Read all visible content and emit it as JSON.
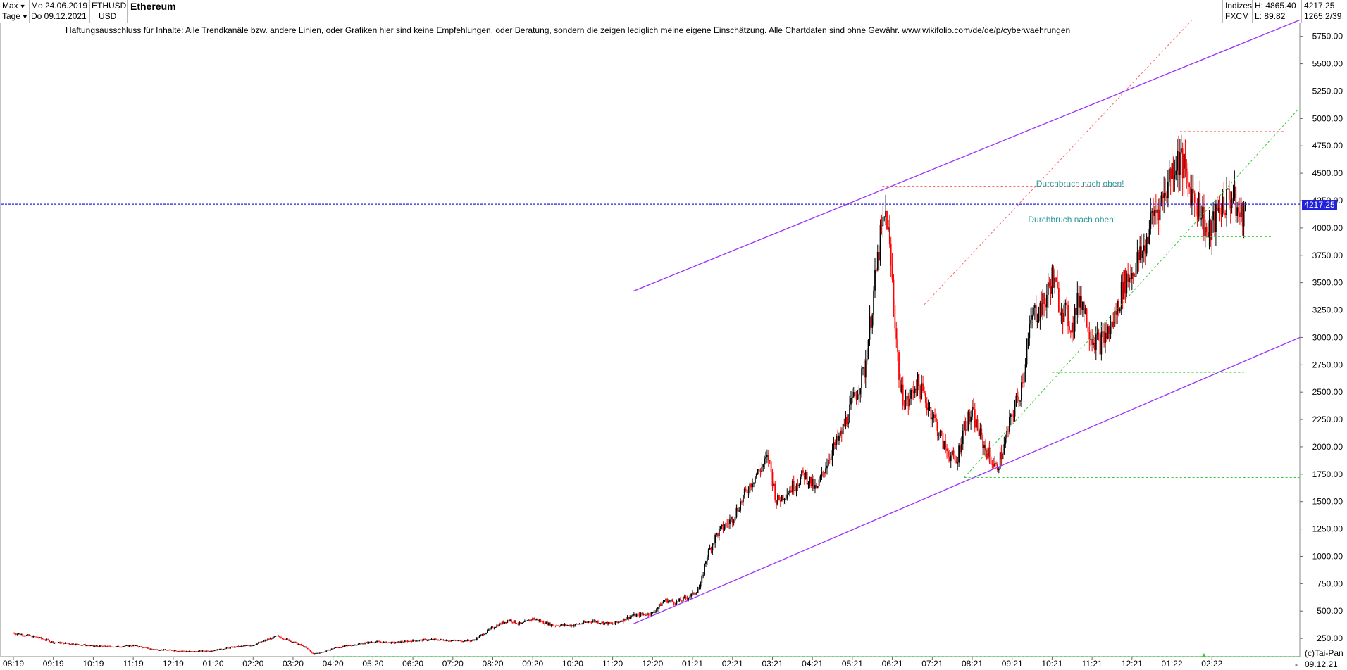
{
  "toolbar": {
    "range_label": "Max",
    "interval_label": "Tage",
    "date_from": "Mo 24.06.2019",
    "date_to": "Do 09.12.2021",
    "symbol": "ETHUSD",
    "currency": "USD",
    "name": "Ethereum",
    "market": "Indizes",
    "source": "FXCM",
    "high": "H: 4865.40",
    "low": "L: 89.82",
    "last": "4217.25",
    "last_sub": "1265.2/39"
  },
  "disclaimer": "Haftungsausschluss für Inhalte: Alle Trendkanäle bzw. andere Linien, oder Grafiken hier sind keine Empfehlungen, oder Beratung, sondern die zeigen lediglich meine eigene Einschätzung. Alle Chartdaten sind ohne Gewähr.  www.wikifolio.com/de/de/p/cyberwaehrungen",
  "current_price_label": "4217.25",
  "copyright": "(c)Tai-Pan",
  "footer_date": "09.12.21",
  "x_dash": "-",
  "chart_data": {
    "type": "candlestick",
    "title": "Ethereum",
    "ylim": [
      0,
      6000
    ],
    "y_ticks": [
      "250.00",
      "500.00",
      "750.00",
      "1000.00",
      "1250.00",
      "1500.00",
      "1750.00",
      "2000.00",
      "2250.00",
      "2500.00",
      "2750.00",
      "3000.00",
      "3250.00",
      "3500.00",
      "3750.00",
      "4000.00",
      "4250.00",
      "4500.00",
      "4750.00",
      "5000.00",
      "5250.00",
      "5500.00",
      "5750.00"
    ],
    "x_ticks": [
      "08:19",
      "09:19",
      "10:19",
      "11:19",
      "12:19",
      "01:20",
      "02:20",
      "03:20",
      "04:20",
      "05:20",
      "06:20",
      "07:20",
      "08:20",
      "09:20",
      "10:20",
      "11:20",
      "12:20",
      "01:21",
      "02:21",
      "03:21",
      "04:21",
      "05:21",
      "06:21",
      "07:21",
      "08:21",
      "09:21",
      "10:21",
      "11:21",
      "12:21",
      "01:22",
      "02:22"
    ],
    "x_range_months": [
      -0.3,
      32.2
    ],
    "bullish_color": "#000000",
    "bearish_color": "#ff0000",
    "price_anchors": [
      [
        0.0,
        300
      ],
      [
        0.6,
        260
      ],
      [
        1.0,
        215
      ],
      [
        1.5,
        200
      ],
      [
        2.0,
        180
      ],
      [
        2.6,
        175
      ],
      [
        3.0,
        185
      ],
      [
        3.5,
        150
      ],
      [
        4.0,
        140
      ],
      [
        4.5,
        130
      ],
      [
        5.0,
        140
      ],
      [
        5.5,
        170
      ],
      [
        6.0,
        190
      ],
      [
        6.6,
        270
      ],
      [
        7.0,
        220
      ],
      [
        7.3,
        170
      ],
      [
        7.5,
        110
      ],
      [
        7.8,
        130
      ],
      [
        8.0,
        160
      ],
      [
        8.5,
        190
      ],
      [
        9.0,
        220
      ],
      [
        9.5,
        210
      ],
      [
        10.0,
        230
      ],
      [
        10.5,
        240
      ],
      [
        11.0,
        230
      ],
      [
        11.5,
        230
      ],
      [
        11.8,
        300
      ],
      [
        12.0,
        350
      ],
      [
        12.4,
        420
      ],
      [
        12.7,
        380
      ],
      [
        13.0,
        430
      ],
      [
        13.5,
        370
      ],
      [
        14.0,
        370
      ],
      [
        14.5,
        410
      ],
      [
        15.0,
        380
      ],
      [
        15.5,
        460
      ],
      [
        16.0,
        480
      ],
      [
        16.3,
        600
      ],
      [
        16.6,
        580
      ],
      [
        17.0,
        650
      ],
      [
        17.2,
        730
      ],
      [
        17.35,
        1000
      ],
      [
        17.6,
        1200
      ],
      [
        18.0,
        1350
      ],
      [
        18.5,
        1700
      ],
      [
        18.9,
        1900
      ],
      [
        19.1,
        1500
      ],
      [
        19.4,
        1600
      ],
      [
        19.8,
        1750
      ],
      [
        20.1,
        1600
      ],
      [
        20.4,
        1900
      ],
      [
        20.7,
        2100
      ],
      [
        21.0,
        2400
      ],
      [
        21.3,
        2700
      ],
      [
        21.5,
        3300
      ],
      [
        21.7,
        3900
      ],
      [
        21.85,
        4150
      ],
      [
        22.0,
        3500
      ],
      [
        22.2,
        2500
      ],
      [
        22.4,
        2400
      ],
      [
        22.6,
        2600
      ],
      [
        23.0,
        2300
      ],
      [
        23.3,
        2000
      ],
      [
        23.6,
        1850
      ],
      [
        23.8,
        2200
      ],
      [
        24.0,
        2300
      ],
      [
        24.3,
        2000
      ],
      [
        24.6,
        1800
      ],
      [
        24.8,
        2000
      ],
      [
        25.0,
        2300
      ],
      [
        25.2,
        2500
      ],
      [
        25.5,
        3200
      ],
      [
        25.8,
        3300
      ],
      [
        26.0,
        3550
      ],
      [
        26.2,
        3300
      ],
      [
        26.5,
        3100
      ],
      [
        26.7,
        3400
      ],
      [
        27.0,
        3000
      ],
      [
        27.2,
        2950
      ],
      [
        27.5,
        3100
      ],
      [
        27.8,
        3500
      ],
      [
        28.0,
        3600
      ],
      [
        28.3,
        3800
      ],
      [
        28.5,
        4100
      ],
      [
        28.8,
        4300
      ],
      [
        29.0,
        4550
      ],
      [
        29.2,
        4650
      ],
      [
        29.4,
        4400
      ],
      [
        29.7,
        4200
      ],
      [
        29.9,
        3900
      ],
      [
        30.2,
        4200
      ],
      [
        30.5,
        4300
      ],
      [
        30.7,
        4100
      ],
      [
        30.85,
        4200
      ]
    ],
    "annotations": [
      {
        "text": "Durchbruch nach oben!",
        "x": 27.8,
        "y": 4380
      },
      {
        "text": "Durchbruch nach oben!",
        "x": 27.6,
        "y": 4050
      }
    ],
    "trend_lines": [
      {
        "color": "#9b30ff",
        "style": "solid",
        "from": [
          15.5,
          3420
        ],
        "to": [
          32.2,
          5900
        ]
      },
      {
        "color": "#9b30ff",
        "style": "solid",
        "from": [
          15.5,
          380
        ],
        "to": [
          32.2,
          3000
        ]
      },
      {
        "color": "#ff6666",
        "style": "dashed",
        "from": [
          22.8,
          3300
        ],
        "to": [
          29.5,
          5900
        ]
      },
      {
        "color": "#33cc33",
        "style": "dashed",
        "from": [
          23.8,
          1720
        ],
        "to": [
          32.2,
          5100
        ]
      },
      {
        "color": "#ff3333",
        "style": "dashed",
        "from": [
          21.75,
          4380
        ],
        "to": [
          27.8,
          4380
        ]
      },
      {
        "color": "#ff3333",
        "style": "dashed",
        "from": [
          29.2,
          4880
        ],
        "to": [
          31.8,
          4880
        ]
      },
      {
        "color": "#33cc33",
        "style": "dashed",
        "from": [
          29.2,
          3920
        ],
        "to": [
          31.5,
          3920
        ]
      },
      {
        "color": "#33cc33",
        "style": "dashed",
        "from": [
          26.0,
          2680
        ],
        "to": [
          30.8,
          2680
        ]
      },
      {
        "color": "#33cc33",
        "style": "dashed",
        "from": [
          23.8,
          1720
        ],
        "to": [
          32.2,
          1720
        ]
      },
      {
        "color": "#33cc33",
        "style": "dashed",
        "from": [
          8.0,
          85
        ],
        "to": [
          32.2,
          85
        ]
      }
    ],
    "current_price": 4217.25,
    "current_price_color": "#2222dd"
  }
}
